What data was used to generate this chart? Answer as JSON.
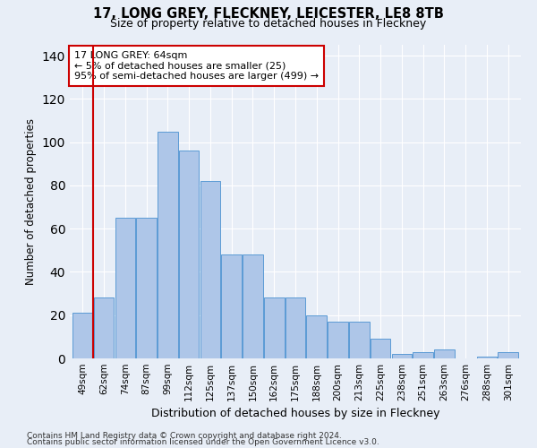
{
  "title": "17, LONG GREY, FLECKNEY, LEICESTER, LE8 8TB",
  "subtitle": "Size of property relative to detached houses in Fleckney",
  "xlabel": "Distribution of detached houses by size in Fleckney",
  "ylabel": "Number of detached properties",
  "categories": [
    "49sqm",
    "62sqm",
    "74sqm",
    "87sqm",
    "99sqm",
    "112sqm",
    "125sqm",
    "137sqm",
    "150sqm",
    "162sqm",
    "175sqm",
    "188sqm",
    "200sqm",
    "213sqm",
    "225sqm",
    "238sqm",
    "251sqm",
    "263sqm",
    "276sqm",
    "288sqm",
    "301sqm"
  ],
  "values": [
    21,
    28,
    65,
    65,
    105,
    96,
    82,
    48,
    48,
    28,
    28,
    20,
    17,
    17,
    9,
    2,
    3,
    4,
    0,
    1,
    3
  ],
  "bar_color": "#aec6e8",
  "bar_edge_color": "#5b9bd5",
  "annotation_box_text": "17 LONG GREY: 64sqm\n← 5% of detached houses are smaller (25)\n95% of semi-detached houses are larger (499) →",
  "annotation_box_color": "#ffffff",
  "annotation_box_edge_color": "#cc0000",
  "vline_x": 0.5,
  "vline_color": "#cc0000",
  "ylim": [
    0,
    145
  ],
  "yticks": [
    0,
    20,
    40,
    60,
    80,
    100,
    120,
    140
  ],
  "background_color": "#e8eef7",
  "footnote1": "Contains HM Land Registry data © Crown copyright and database right 2024.",
  "footnote2": "Contains public sector information licensed under the Open Government Licence v3.0."
}
